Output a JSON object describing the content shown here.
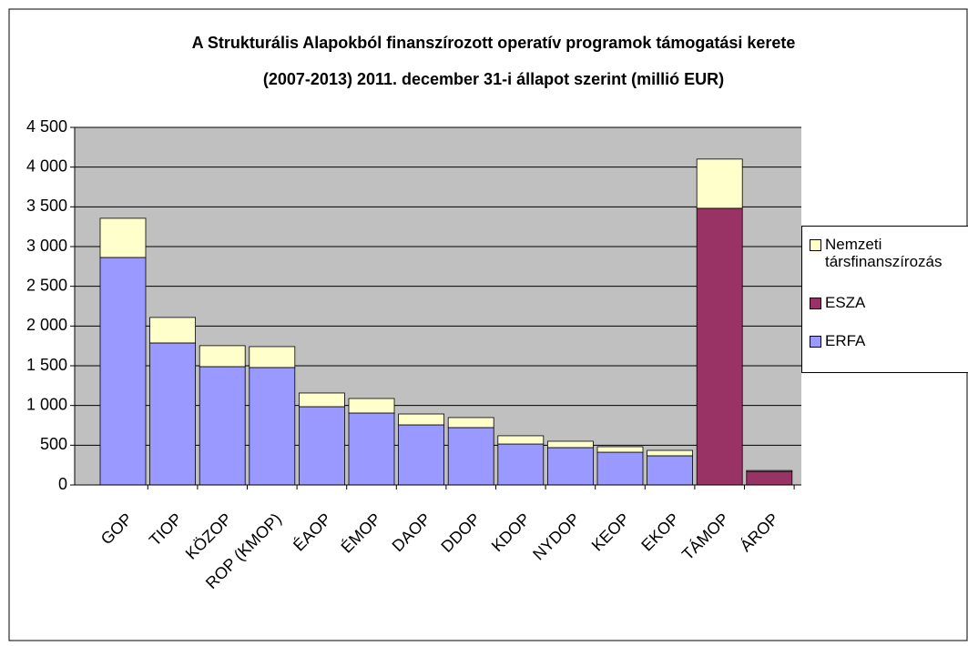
{
  "chart_data": {
    "type": "bar",
    "stacked": true,
    "title": [
      "A Strukturális Alapokból finanszírozott  operatív programok támogatási kerete",
      "(2007-2013) 2011. december 31-i állapot szerint (millió EUR)"
    ],
    "categories": [
      "GOP",
      "TIOP",
      "KÖZOP",
      "ROP (KMOP)",
      "ÉAOP",
      "ÉMOP",
      "DAOP",
      "DDOP",
      "KDOP",
      "NYDOP",
      "KEOP",
      "EKOP",
      "TÁMOP",
      "ÁROP"
    ],
    "series": [
      {
        "name": "ERFA",
        "color": "#9999ff",
        "values": [
          2863,
          1787,
          1489,
          1478,
          985,
          905,
          756,
          722,
          515,
          470,
          412,
          367,
          0,
          0
        ]
      },
      {
        "name": "ESZA",
        "color": "#993366",
        "values": [
          0,
          0,
          0,
          0,
          0,
          0,
          0,
          0,
          0,
          0,
          0,
          0,
          3482,
          170
        ]
      },
      {
        "name": "Nemzeti társfinanszírozás",
        "color": "#ffffcc",
        "values": [
          493,
          321,
          264,
          263,
          172,
          183,
          137,
          126,
          104,
          80,
          69,
          68,
          619,
          12
        ]
      }
    ],
    "ylim": [
      0,
      4500
    ],
    "yticks": [
      0,
      500,
      {
        "value": 1000,
        "label": "1 000"
      },
      {
        "value": 1500,
        "label": "1 500"
      },
      {
        "value": 2000,
        "label": "2 000"
      },
      {
        "value": 2500,
        "label": "2 500"
      },
      {
        "value": 3000,
        "label": "3 000"
      },
      {
        "value": 3500,
        "label": "3 500"
      },
      {
        "value": 4000,
        "label": "4 000"
      },
      {
        "value": 4500,
        "label": "4 500"
      }
    ],
    "grid": true,
    "plot_background": "#c0c0c0",
    "legend": "right"
  }
}
